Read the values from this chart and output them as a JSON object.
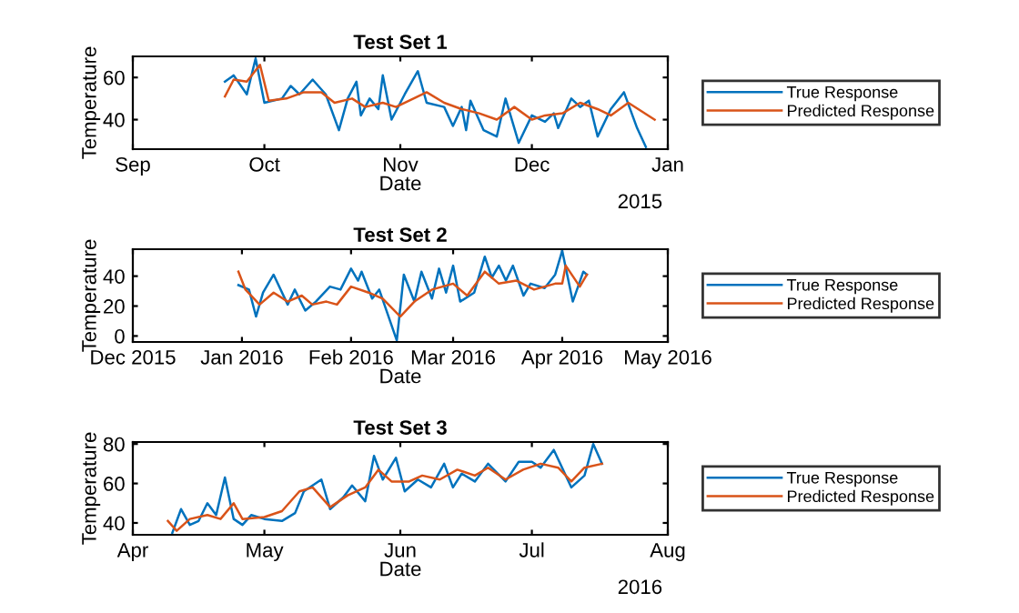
{
  "chart_data": [
    {
      "type": "line",
      "title": "Test Set 1",
      "xlabel": "Date",
      "ylabel": "Temperature",
      "annotations": [
        "2015"
      ],
      "legend": "right",
      "grid": false,
      "xlim": [
        "2014-09-01",
        "2015-01-01"
      ],
      "xticks": [
        {
          "value": "2014-09-01",
          "label": "Sep"
        },
        {
          "value": "2014-10-01",
          "label": "Oct"
        },
        {
          "value": "2014-11-01",
          "label": "Nov"
        },
        {
          "value": "2014-12-01",
          "label": "Dec"
        },
        {
          "value": "2015-01-01",
          "label": "Jan"
        }
      ],
      "ylim": [
        26,
        70
      ],
      "yticks": [
        40,
        60
      ],
      "series": [
        {
          "name": "True Response",
          "color": "#0072bd",
          "x": [
            "2014-09-22",
            "2014-09-24",
            "2014-09-27",
            "2014-09-29",
            "2014-10-01",
            "2014-10-05",
            "2014-10-07",
            "2014-10-09",
            "2014-10-12",
            "2014-10-15",
            "2014-10-18",
            "2014-10-20",
            "2014-10-22",
            "2014-10-23",
            "2014-10-25",
            "2014-10-27",
            "2014-10-28",
            "2014-10-30",
            "2014-11-02",
            "2014-11-05",
            "2014-11-07",
            "2014-11-11",
            "2014-11-13",
            "2014-11-15",
            "2014-11-16",
            "2014-11-17",
            "2014-11-20",
            "2014-11-23",
            "2014-11-25",
            "2014-11-28",
            "2014-12-01",
            "2014-12-04",
            "2014-12-06",
            "2014-12-07",
            "2014-12-10",
            "2014-12-12",
            "2014-12-14",
            "2014-12-16",
            "2014-12-19",
            "2014-12-22",
            "2014-12-25",
            "2014-12-27"
          ],
          "values": [
            58,
            61,
            52,
            69,
            48,
            50,
            56,
            52,
            59,
            52,
            35,
            50,
            58,
            42,
            50,
            45,
            61,
            40,
            52,
            63,
            48,
            46,
            37,
            46,
            35,
            49,
            35,
            32,
            50,
            29,
            42,
            39,
            43,
            36,
            50,
            46,
            49,
            32,
            45,
            53,
            36,
            27
          ]
        },
        {
          "name": "Predicted Response",
          "color": "#d95319",
          "x": [
            "2014-09-22",
            "2014-09-24",
            "2014-09-27",
            "2014-09-30",
            "2014-10-02",
            "2014-10-06",
            "2014-10-10",
            "2014-10-14",
            "2014-10-17",
            "2014-10-21",
            "2014-10-24",
            "2014-10-28",
            "2014-10-31",
            "2014-11-04",
            "2014-11-07",
            "2014-11-11",
            "2014-11-15",
            "2014-11-19",
            "2014-11-23",
            "2014-11-27",
            "2014-12-01",
            "2014-12-04",
            "2014-12-08",
            "2014-12-12",
            "2014-12-16",
            "2014-12-19",
            "2014-12-23",
            "2014-12-29"
          ],
          "values": [
            51,
            59,
            58,
            66,
            49,
            50,
            53,
            53,
            48,
            50,
            46,
            48,
            46,
            50,
            53,
            48,
            45,
            43,
            40,
            46,
            40,
            42,
            43,
            48,
            45,
            42,
            48,
            40
          ]
        }
      ]
    },
    {
      "type": "line",
      "title": "Test Set 2",
      "xlabel": "Date",
      "ylabel": "Temperature",
      "legend": "right",
      "grid": false,
      "xlim": [
        "2015-12-01",
        "2016-05-01"
      ],
      "xticks": [
        {
          "value": "2015-12-01",
          "label": "Dec 2015"
        },
        {
          "value": "2016-01-01",
          "label": "Jan 2016"
        },
        {
          "value": "2016-02-01",
          "label": "Feb 2016"
        },
        {
          "value": "2016-03-01",
          "label": "Mar 2016"
        },
        {
          "value": "2016-04-01",
          "label": "Apr 2016"
        },
        {
          "value": "2016-05-01",
          "label": "May 2016"
        }
      ],
      "ylim": [
        -4,
        58
      ],
      "yticks": [
        0,
        20,
        40
      ],
      "series": [
        {
          "name": "True Response",
          "color": "#0072bd",
          "x": [
            "2015-12-31",
            "2016-01-03",
            "2016-01-05",
            "2016-01-07",
            "2016-01-10",
            "2016-01-14",
            "2016-01-16",
            "2016-01-19",
            "2016-01-22",
            "2016-01-26",
            "2016-01-29",
            "2016-02-01",
            "2016-02-03",
            "2016-02-04",
            "2016-02-07",
            "2016-02-09",
            "2016-02-14",
            "2016-02-16",
            "2016-02-19",
            "2016-02-21",
            "2016-02-24",
            "2016-02-26",
            "2016-02-28",
            "2016-03-01",
            "2016-03-03",
            "2016-03-07",
            "2016-03-10",
            "2016-03-12",
            "2016-03-14",
            "2016-03-16",
            "2016-03-18",
            "2016-03-21",
            "2016-03-23",
            "2016-03-27",
            "2016-03-30",
            "2016-04-01",
            "2016-04-04",
            "2016-04-07",
            "2016-04-08"
          ],
          "values": [
            34,
            31,
            13,
            29,
            41,
            21,
            31,
            17,
            23,
            33,
            31,
            45,
            37,
            43,
            25,
            31,
            -3,
            41,
            23,
            43,
            25,
            45,
            29,
            47,
            23,
            29,
            53,
            39,
            47,
            37,
            47,
            27,
            35,
            32,
            41,
            57,
            23,
            43,
            41
          ]
        },
        {
          "name": "Predicted Response",
          "color": "#d95319",
          "x": [
            "2015-12-31",
            "2016-01-02",
            "2016-01-06",
            "2016-01-10",
            "2016-01-14",
            "2016-01-18",
            "2016-01-21",
            "2016-01-25",
            "2016-01-28",
            "2016-02-01",
            "2016-02-06",
            "2016-02-10",
            "2016-02-15",
            "2016-02-19",
            "2016-02-24",
            "2016-03-01",
            "2016-03-05",
            "2016-03-10",
            "2016-03-14",
            "2016-03-19",
            "2016-03-24",
            "2016-03-30",
            "2016-04-01",
            "2016-04-02",
            "2016-04-06",
            "2016-04-08"
          ],
          "values": [
            43,
            31,
            21,
            29,
            23,
            27,
            21,
            23,
            21,
            33,
            29,
            25,
            13,
            23,
            31,
            35,
            27,
            43,
            35,
            37,
            31,
            35,
            35,
            47,
            33,
            41
          ]
        }
      ]
    },
    {
      "type": "line",
      "title": "Test Set 3",
      "xlabel": "Date",
      "ylabel": "Temperature",
      "annotations": [
        "2016"
      ],
      "legend": "right",
      "grid": false,
      "xlim": [
        "2016-04-01",
        "2016-08-01"
      ],
      "xticks": [
        {
          "value": "2016-04-01",
          "label": "Apr"
        },
        {
          "value": "2016-05-01",
          "label": "May"
        },
        {
          "value": "2016-06-01",
          "label": "Jun"
        },
        {
          "value": "2016-07-01",
          "label": "Jul"
        },
        {
          "value": "2016-08-01",
          "label": "Aug"
        }
      ],
      "ylim": [
        34,
        81
      ],
      "yticks": [
        40,
        60,
        80
      ],
      "series": [
        {
          "name": "True Response",
          "color": "#0072bd",
          "x": [
            "2016-04-10",
            "2016-04-12",
            "2016-04-14",
            "2016-04-16",
            "2016-04-18",
            "2016-04-20",
            "2016-04-22",
            "2016-04-24",
            "2016-04-26",
            "2016-04-28",
            "2016-05-01",
            "2016-05-05",
            "2016-05-08",
            "2016-05-10",
            "2016-05-14",
            "2016-05-16",
            "2016-05-19",
            "2016-05-21",
            "2016-05-24",
            "2016-05-26",
            "2016-05-28",
            "2016-05-31",
            "2016-06-02",
            "2016-06-05",
            "2016-06-08",
            "2016-06-11",
            "2016-06-13",
            "2016-06-15",
            "2016-06-18",
            "2016-06-21",
            "2016-06-25",
            "2016-06-28",
            "2016-07-01",
            "2016-07-03",
            "2016-07-06",
            "2016-07-10",
            "2016-07-13",
            "2016-07-15",
            "2016-07-17"
          ],
          "values": [
            35,
            47,
            39,
            41,
            50,
            44,
            63,
            42,
            39,
            44,
            42,
            41,
            45,
            56,
            62,
            47,
            53,
            59,
            51,
            74,
            62,
            73,
            56,
            62,
            58,
            70,
            58,
            65,
            61,
            70,
            61,
            71,
            71,
            68,
            77,
            58,
            64,
            80,
            70
          ]
        },
        {
          "name": "Predicted Response",
          "color": "#d95319",
          "x": [
            "2016-04-09",
            "2016-04-11",
            "2016-04-14",
            "2016-04-18",
            "2016-04-21",
            "2016-04-24",
            "2016-04-26",
            "2016-05-01",
            "2016-05-05",
            "2016-05-09",
            "2016-05-12",
            "2016-05-16",
            "2016-05-20",
            "2016-05-24",
            "2016-05-27",
            "2016-05-30",
            "2016-06-03",
            "2016-06-06",
            "2016-06-10",
            "2016-06-14",
            "2016-06-18",
            "2016-06-21",
            "2016-06-25",
            "2016-06-29",
            "2016-07-03",
            "2016-07-07",
            "2016-07-10",
            "2016-07-13",
            "2016-07-17"
          ],
          "values": [
            41,
            36,
            42,
            44,
            42,
            50,
            42,
            43,
            46,
            56,
            58,
            48,
            54,
            58,
            67,
            61,
            61,
            64,
            62,
            67,
            64,
            68,
            62,
            67,
            70,
            68,
            61,
            68,
            70
          ]
        }
      ]
    }
  ]
}
